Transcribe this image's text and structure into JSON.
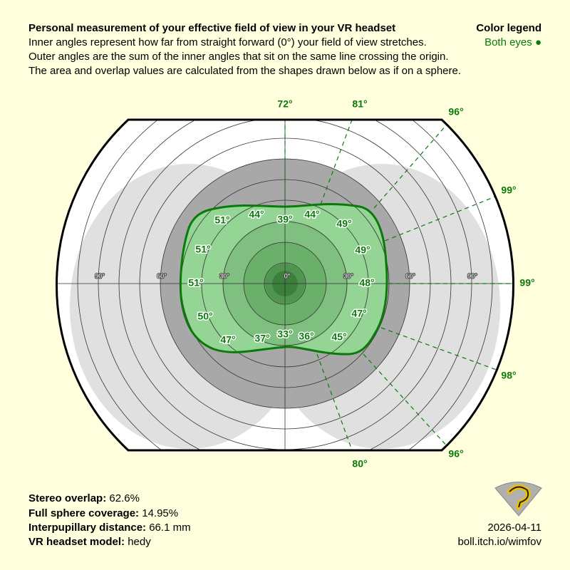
{
  "header": {
    "title": "Personal measurement of your effective field of view in your VR headset",
    "lines": [
      "Inner angles represent how far from straight forward (0°) your field of view stretches.",
      "Outer angles are the sum of the inner angles that sit on the same line crossing the origin.",
      "The area and overlap values are calculated from the shapes drawn below as if on a sphere."
    ]
  },
  "legend": {
    "title": "Color legend",
    "entries": [
      "Both eyes ●"
    ]
  },
  "ring_labels": [
    "90°",
    "60°",
    "30°",
    "0°",
    "30°",
    "60°",
    "90°"
  ],
  "inner_angles": [
    "51°",
    "44°",
    "39°",
    "44°",
    "49°",
    "51°",
    "49°",
    "51°",
    "48°",
    "50°",
    "47°",
    "47°",
    "37°",
    "33°",
    "36°",
    "45°"
  ],
  "outer_angles": [
    "72°",
    "81°",
    "96°",
    "99°",
    "99°",
    "98°",
    "96°",
    "80°"
  ],
  "stats": [
    {
      "label": "Stereo overlap:",
      "value": "62.6%"
    },
    {
      "label": "Full sphere coverage:",
      "value": "14.95%"
    },
    {
      "label": "Interpupillary distance:",
      "value": "66.1 mm"
    },
    {
      "label": "VR headset model:",
      "value": "hedy"
    }
  ],
  "footer": {
    "date": "2026-04-11",
    "url": "boll.itch.io/wimfov"
  }
}
